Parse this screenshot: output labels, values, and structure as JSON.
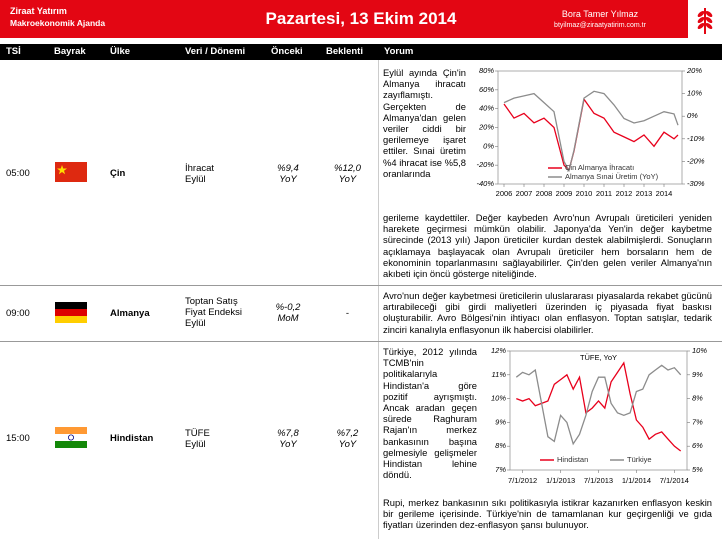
{
  "header": {
    "company": "Ziraat Yatırım",
    "subtitle": "Makroekonomik Ajanda",
    "title": "Pazartesi, 13 Ekim 2014",
    "author": "Bora Tamer Yılmaz",
    "email": "btyilmaz@ziraatyatirim.com.tr"
  },
  "columns": [
    "TSİ",
    "Bayrak",
    "Ülke",
    "Veri / Dönemi",
    "Önceki",
    "Beklenti",
    "Yorum"
  ],
  "rows": [
    {
      "time": "05:00",
      "country": "Çin",
      "data": [
        "İhracat",
        "Eylül"
      ],
      "previous": [
        "%9,4",
        "YoY"
      ],
      "expected": [
        "%12,0",
        "YoY"
      ],
      "comment_top": "Eylül ayında Çin'in Almanya ihracatı zayıflamıştı. Gerçekten de Almanya'dan gelen veriler ciddi bir gerilemeye işaret ettiler. Sınai üretim %4 ihracat ise %5,8 oranlarında",
      "comment_bottom": "gerileme kaydettiler. Değer kaybeden Avro'nun Avrupalı üreticileri yeniden harekete geçirmesi mümkün olabilir. Japonya'da Yen'in değer kaybetme sürecinde (2013 yılı) Japon üreticiler kurdan destek alabilmişlerdi. Sonuçların açıklamaya başlayacak olan Avrupalı üreticiler hem borsaların hem de ekonominin toparlanmasını sağlayabilirler. Çin'den gelen veriler Almanya'nın akıbeti için öncü gösterge niteliğinde."
    },
    {
      "time": "09:00",
      "country": "Almanya",
      "data": [
        "Toptan Satış",
        "Fiyat Endeksi",
        "Eylül"
      ],
      "previous": [
        "%-0,2",
        "MoM"
      ],
      "expected": [
        "-"
      ],
      "comment_top": "Avro'nun değer kaybetmesi üreticilerin uluslararası piyasalarda rekabet gücünü artırabileceği gibi girdi maliyetleri üzerinden iç piyasada fiyat baskısı oluşturabilir. Avro Bölgesi'nin ihtiyacı olan enflasyon. Toptan satışlar, tedarik zinciri kanalıyla enflasyonun ilk habercisi olabilirler."
    },
    {
      "time": "15:00",
      "country": "Hindistan",
      "data": [
        "TÜFE",
        "Eylül"
      ],
      "previous": [
        "%7,8",
        "YoY"
      ],
      "expected": [
        "%7,2",
        "YoY"
      ],
      "comment_top": "Türkiye, 2012 yılında TCMB'nin politikalarıyla Hindistan'a göre pozitif ayrışmıştı. Ancak aradan geçen sürede Raghuram Rajan'ın merkez bankasının başına gelmesiyle gelişmeler Hindistan lehine döndü.",
      "comment_bottom": "Rupi, merkez bankasının sıkı politikasıyla istikrar kazanırken enflasyon keskin bir gerileme içerisinde. Türkiye'nin de tamamlanan kur geçirgenliği ve gıda fiyatları üzerinden dez-enflasyon şansı bulunuyor."
    }
  ],
  "chart_data": [
    {
      "type": "line",
      "legend": "bottom",
      "x": [
        2006,
        2006.5,
        2007,
        2007.5,
        2008,
        2008.5,
        2009,
        2009.25,
        2009.5,
        2010,
        2010.5,
        2011,
        2011.5,
        2012,
        2012.5,
        2013,
        2013.5,
        2014,
        2014.5,
        2014.7
      ],
      "series": [
        {
          "name": "Çin Almanya İhracatı",
          "color": "#e8001c",
          "axis": "y",
          "values": [
            45,
            30,
            35,
            25,
            30,
            20,
            -20,
            -25,
            -5,
            50,
            35,
            30,
            15,
            10,
            5,
            12,
            0,
            15,
            8,
            12
          ]
        },
        {
          "name": "Almanya Sınai Üretim (YoY)",
          "color": "#8c8c8c",
          "axis": "y2",
          "values": [
            6,
            8,
            9,
            10,
            6,
            2,
            -20,
            -24,
            -15,
            8,
            11,
            10,
            5,
            -1,
            -3,
            -2,
            0,
            2,
            1,
            -4
          ]
        }
      ],
      "xlim": [
        2005.7,
        2014.9
      ],
      "xticks": [
        2006,
        2007,
        2008,
        2009,
        2010,
        2011,
        2012,
        2013,
        2014
      ],
      "ylim": [
        -40,
        80
      ],
      "yticks": [
        {
          "value": 80,
          "label": "80%"
        },
        {
          "value": 60,
          "label": "60%"
        },
        {
          "value": 40,
          "label": "40%"
        },
        {
          "value": 20,
          "label": "20%"
        },
        {
          "value": 0,
          "label": "0%"
        },
        {
          "value": -20,
          "label": "-20%"
        },
        {
          "value": -40,
          "label": "-40%"
        }
      ],
      "y2lim": [
        -30,
        20
      ],
      "y2ticks": [
        {
          "value": 20,
          "label": "20%"
        },
        {
          "value": 10,
          "label": "10%"
        },
        {
          "value": 0,
          "label": "0%"
        },
        {
          "value": -10,
          "label": "-10%"
        },
        {
          "value": -20,
          "label": "-20%"
        },
        {
          "value": -30,
          "label": "-30%"
        }
      ]
    },
    {
      "type": "line",
      "title": "TÜFE, YoY",
      "legend": "bottom",
      "x": [
        "2012-06",
        "2012-07",
        "2012-08",
        "2012-09",
        "2012-10",
        "2012-11",
        "2012-12",
        "2013-01",
        "2013-02",
        "2013-03",
        "2013-04",
        "2013-05",
        "2013-06",
        "2013-07",
        "2013-08",
        "2013-09",
        "2013-10",
        "2013-11",
        "2013-12",
        "2014-01",
        "2014-02",
        "2014-03",
        "2014-04",
        "2014-05",
        "2014-06",
        "2014-07",
        "2014-08"
      ],
      "series": [
        {
          "name": "Hindistan",
          "color": "#e8001c",
          "axis": "y",
          "values": [
            10.0,
            9.9,
            10.0,
            9.7,
            9.8,
            9.9,
            10.6,
            10.8,
            11.0,
            10.4,
            10.9,
            9.4,
            9.6,
            9.9,
            9.6,
            10.7,
            11.1,
            11.5,
            10.2,
            9.1,
            8.8,
            8.3,
            8.5,
            8.6,
            8.3,
            8.0,
            7.8
          ]
        },
        {
          "name": "Türkiye",
          "color": "#8c8c8c",
          "axis": "y2",
          "values": [
            8.9,
            9.1,
            9.0,
            9.2,
            7.8,
            6.4,
            6.2,
            7.3,
            7.0,
            6.1,
            6.5,
            7.3,
            8.3,
            8.9,
            8.9,
            7.8,
            7.4,
            7.3,
            7.4,
            8.3,
            8.4,
            9.0,
            9.2,
            9.4,
            9.2,
            9.3,
            9.0
          ]
        }
      ],
      "xlim": [
        "2012-05",
        "2014-09"
      ],
      "xticks": [
        {
          "value": "2012-07",
          "label": "7/1/2012"
        },
        {
          "value": "2013-01",
          "label": "1/1/2013"
        },
        {
          "value": "2013-07",
          "label": "7/1/2013"
        },
        {
          "value": "2014-01",
          "label": "1/1/2014"
        },
        {
          "value": "2014-07",
          "label": "7/1/2014"
        }
      ],
      "ylim": [
        7,
        12
      ],
      "yticks": [
        {
          "value": 12,
          "label": "12%"
        },
        {
          "value": 11,
          "label": "11%"
        },
        {
          "value": 10,
          "label": "10%"
        },
        {
          "value": 9,
          "label": "9%"
        },
        {
          "value": 8,
          "label": "8%"
        },
        {
          "value": 7,
          "label": "7%"
        }
      ],
      "y2lim": [
        5,
        10
      ],
      "y2ticks": [
        {
          "value": 10,
          "label": "10%"
        },
        {
          "value": 9,
          "label": "9%"
        },
        {
          "value": 8,
          "label": "8%"
        },
        {
          "value": 7,
          "label": "7%"
        },
        {
          "value": 6,
          "label": "6%"
        },
        {
          "value": 5,
          "label": "5%"
        }
      ]
    }
  ]
}
